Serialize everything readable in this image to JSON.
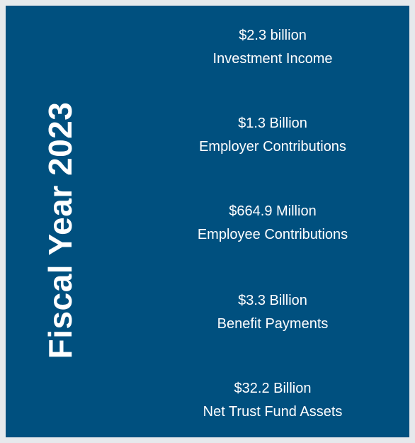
{
  "title": "Fiscal Year 2023",
  "items": [
    {
      "amount": "$2.3 billion",
      "label": "Investment Income"
    },
    {
      "amount": "$1.3 Billion",
      "label": "Employer Contributions"
    },
    {
      "amount": "$664.9 Million",
      "label": "Employee Contributions"
    },
    {
      "amount": "$3.3 Billion",
      "label": "Benefit Payments"
    },
    {
      "amount": "$32.2 Billion",
      "label": "Net Trust Fund Assets"
    }
  ]
}
